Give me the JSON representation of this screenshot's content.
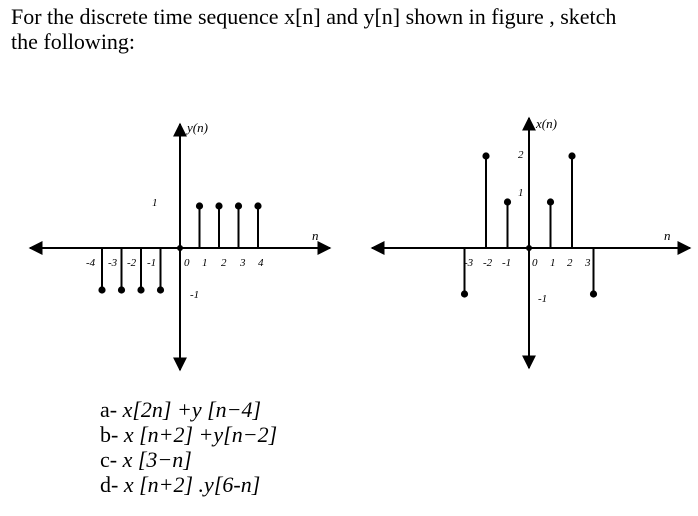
{
  "header": {
    "line1": "For the discrete time sequence x[n] and y[n] shown in figure , sketch",
    "line2": "the following:"
  },
  "plots": [
    {
      "id": "y",
      "title": "y(n)",
      "xlabel": "n",
      "tick_labels": [
        "-4",
        "-3",
        "-2",
        "-1",
        "0",
        "1",
        "2",
        "3",
        "4"
      ],
      "level_labels": [
        "1",
        "-1"
      ]
    },
    {
      "id": "x",
      "title": "x(n)",
      "xlabel": "n",
      "tick_labels": [
        "-3",
        "-2",
        "-1",
        "0",
        "1",
        "2",
        "3"
      ],
      "level_labels": [
        "2",
        "1",
        "-1"
      ]
    }
  ],
  "chart_data": [
    {
      "type": "stem",
      "title": "y(n)",
      "xlabel": "n",
      "x": [
        -4,
        -3,
        -2,
        -1,
        0,
        1,
        2,
        3,
        4
      ],
      "values": [
        -1,
        -1,
        -1,
        -1,
        0,
        1,
        1,
        1,
        1
      ],
      "ylim": [
        -2,
        2
      ]
    },
    {
      "type": "stem",
      "title": "x(n)",
      "xlabel": "n",
      "x": [
        -3,
        -2,
        -1,
        0,
        1,
        2,
        3
      ],
      "values": [
        -1,
        2,
        1,
        0,
        1,
        2,
        -1
      ],
      "ylim": [
        -2,
        2
      ]
    }
  ],
  "questions": [
    {
      "label": "a-",
      "expr": "x[2n] +y [n−4]"
    },
    {
      "label": "b-",
      "expr": "x [n+2] +y[n−2]"
    },
    {
      "label": "c-",
      "expr": "x [3−n]"
    },
    {
      "label": "d-",
      "expr": "x [n+2] .y[6-n]"
    }
  ]
}
